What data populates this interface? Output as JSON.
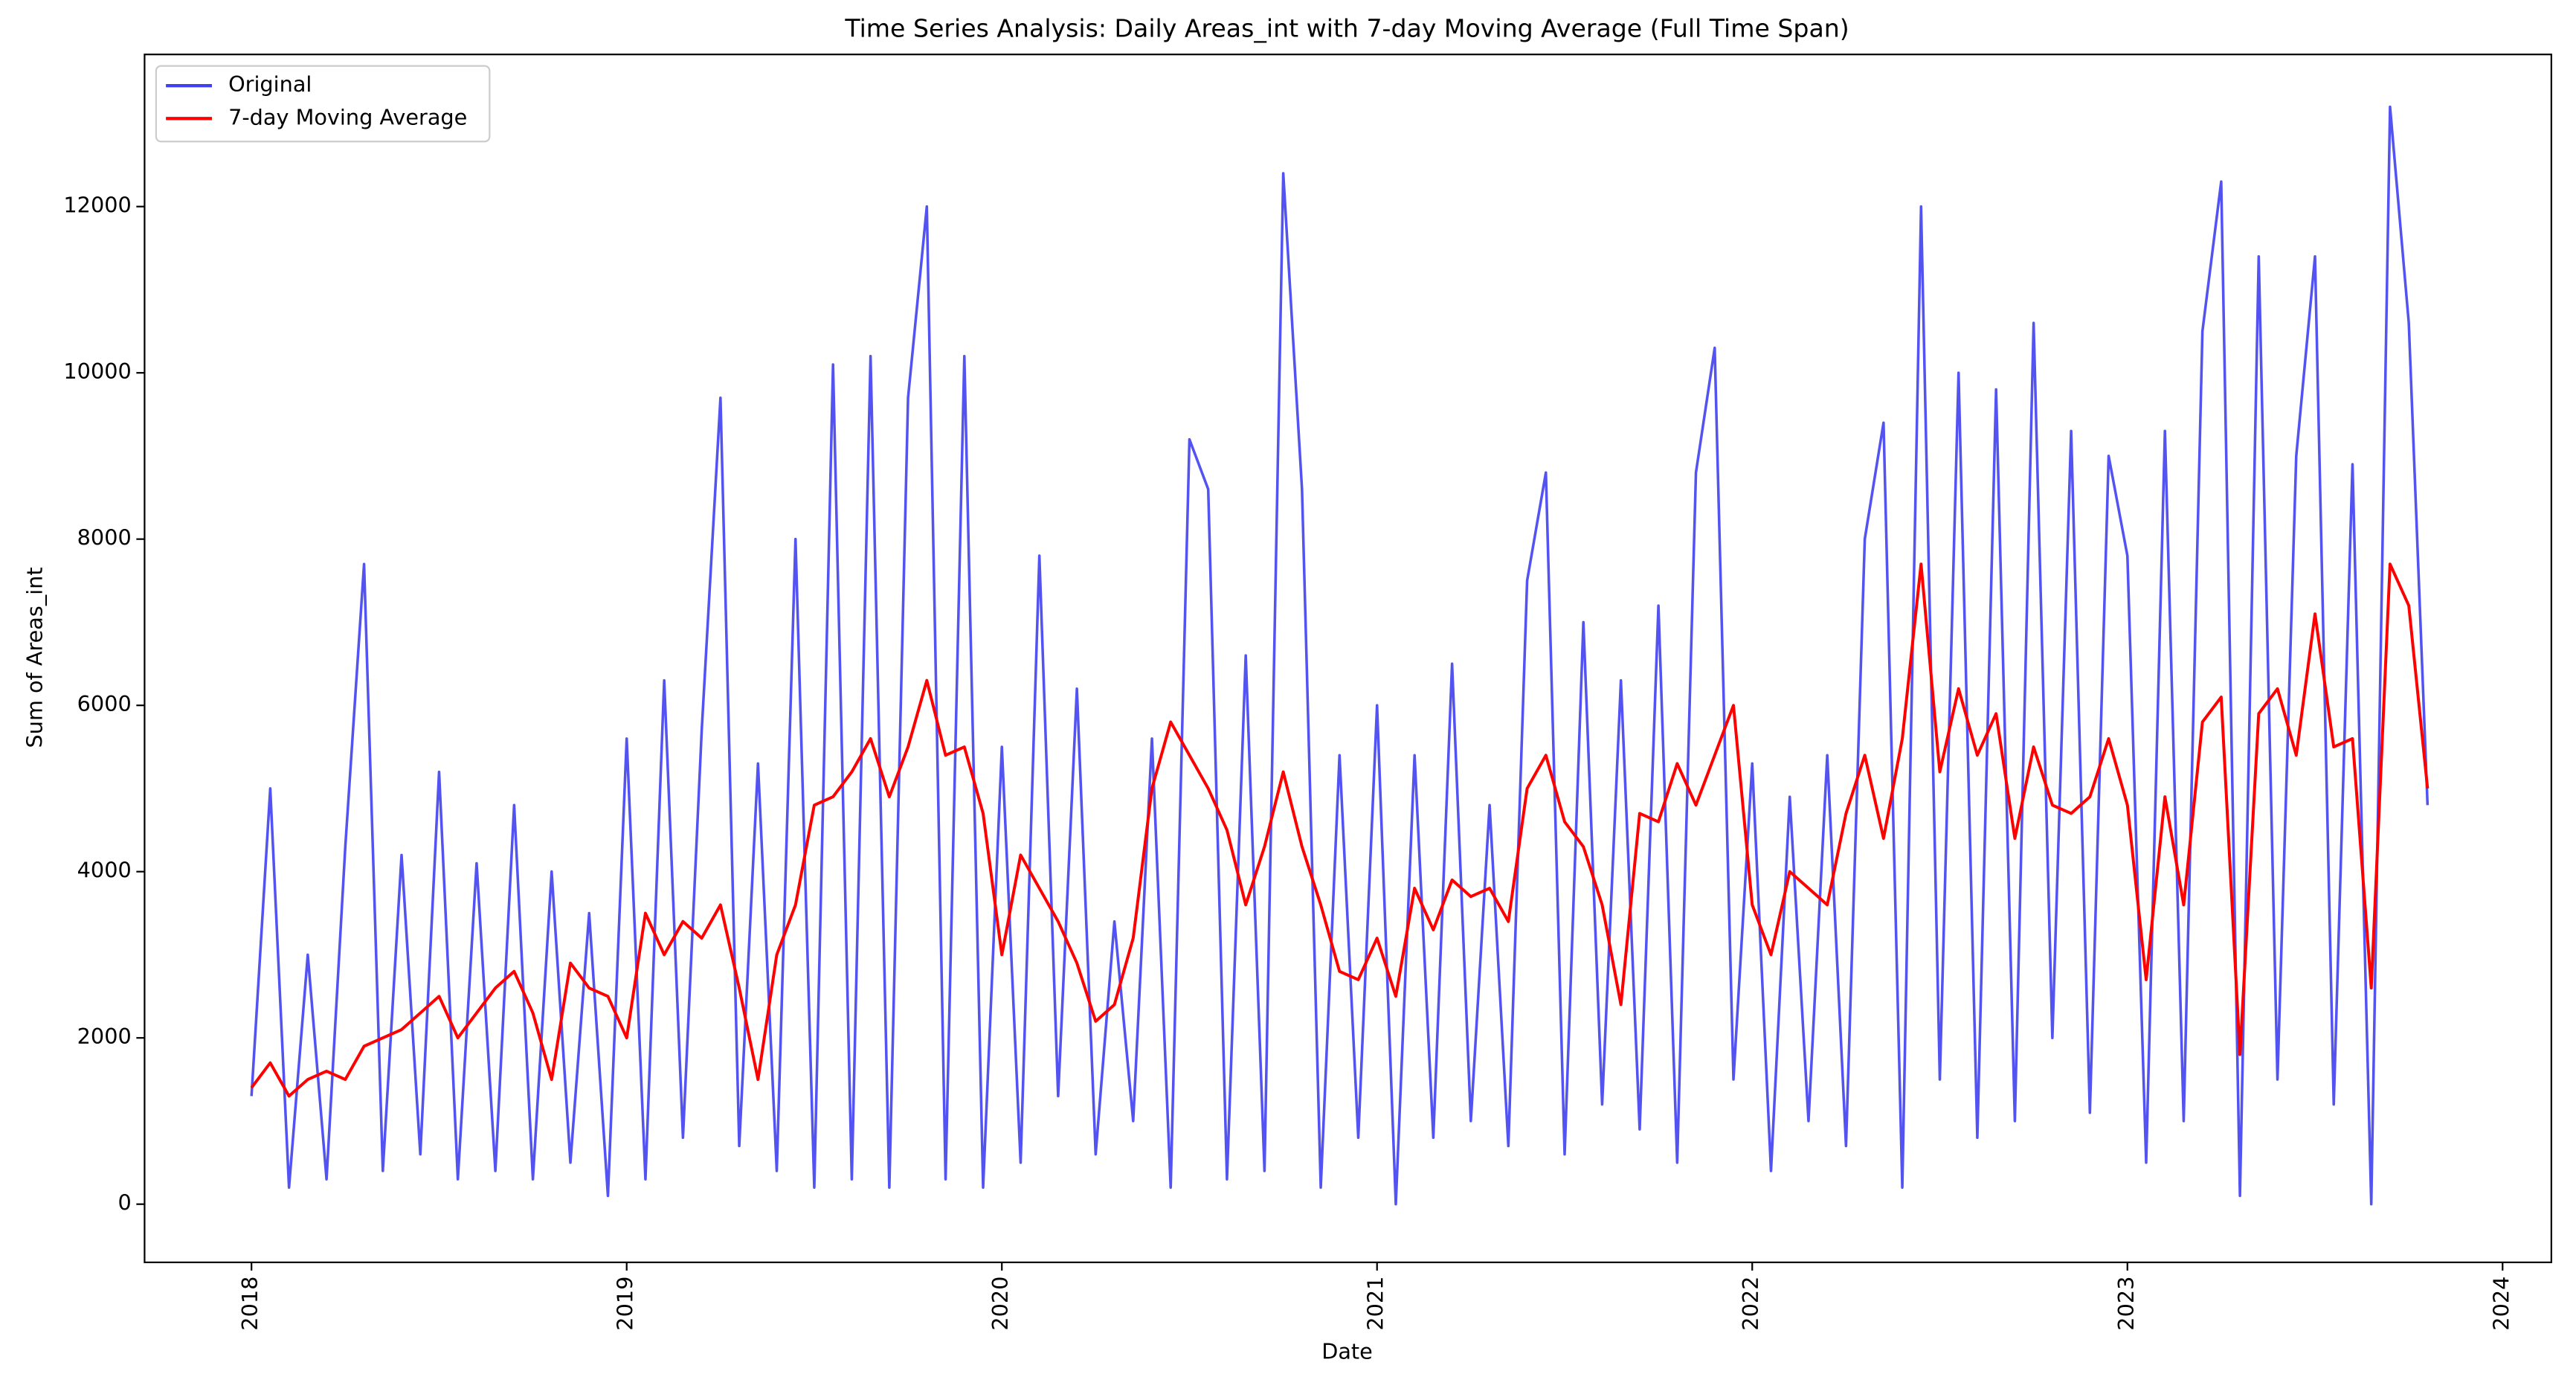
{
  "chart_data": {
    "type": "line",
    "title": "Time Series Analysis: Daily Areas_int with 7-day Moving Average (Full Time Span)",
    "xlabel": "Date",
    "ylabel": "Sum of Areas_int",
    "x": [
      2018.0,
      2018.05,
      2018.1,
      2018.15,
      2018.2,
      2018.25,
      2018.3,
      2018.35,
      2018.4,
      2018.45,
      2018.5,
      2018.55,
      2018.6,
      2018.65,
      2018.7,
      2018.75,
      2018.8,
      2018.85,
      2018.9,
      2018.95,
      2019.0,
      2019.05,
      2019.1,
      2019.15,
      2019.2,
      2019.25,
      2019.3,
      2019.35,
      2019.4,
      2019.45,
      2019.5,
      2019.55,
      2019.6,
      2019.65,
      2019.7,
      2019.75,
      2019.8,
      2019.85,
      2019.9,
      2019.95,
      2020.0,
      2020.05,
      2020.1,
      2020.15,
      2020.2,
      2020.25,
      2020.3,
      2020.35,
      2020.4,
      2020.45,
      2020.5,
      2020.55,
      2020.6,
      2020.65,
      2020.7,
      2020.75,
      2020.8,
      2020.85,
      2020.9,
      2020.95,
      2021.0,
      2021.05,
      2021.1,
      2021.15,
      2021.2,
      2021.25,
      2021.3,
      2021.35,
      2021.4,
      2021.45,
      2021.5,
      2021.55,
      2021.6,
      2021.65,
      2021.7,
      2021.75,
      2021.8,
      2021.85,
      2021.9,
      2021.95,
      2022.0,
      2022.05,
      2022.1,
      2022.15,
      2022.2,
      2022.25,
      2022.3,
      2022.35,
      2022.4,
      2022.45,
      2022.5,
      2022.55,
      2022.6,
      2022.65,
      2022.7,
      2022.75,
      2022.8,
      2022.85,
      2022.9,
      2022.95,
      2023.0,
      2023.05,
      2023.1,
      2023.15,
      2023.2,
      2023.25,
      2023.3,
      2023.35,
      2023.4,
      2023.45,
      2023.5,
      2023.55,
      2023.6,
      2023.65,
      2023.7,
      2023.75,
      2023.8
    ],
    "series": [
      {
        "name": "Original",
        "color": "#4040f0",
        "values": [
          1300,
          5000,
          200,
          3000,
          300,
          4300,
          7700,
          400,
          4200,
          600,
          5200,
          300,
          4100,
          400,
          4800,
          300,
          4000,
          500,
          3500,
          100,
          5600,
          300,
          6300,
          800,
          5700,
          9700,
          700,
          5300,
          400,
          8000,
          200,
          10100,
          300,
          10200,
          200,
          9700,
          12000,
          300,
          10200,
          200,
          5500,
          500,
          7800,
          1300,
          6200,
          600,
          3400,
          1000,
          5600,
          200,
          9200,
          8600,
          300,
          6600,
          400,
          12400,
          8600,
          200,
          5400,
          800,
          6000,
          0,
          5400,
          800,
          6500,
          1000,
          4800,
          700,
          7500,
          8800,
          600,
          7000,
          1200,
          6300,
          900,
          7200,
          500,
          8800,
          10300,
          1500,
          5300,
          400,
          4900,
          1000,
          5400,
          700,
          8000,
          9400,
          200,
          12000,
          1500,
          10000,
          800,
          9800,
          1000,
          10600,
          2000,
          9300,
          1100,
          9000,
          7800,
          500,
          9300,
          1000,
          10500,
          12300,
          100,
          11400,
          1500,
          9000,
          11400,
          1200,
          8900,
          0,
          13200,
          10600,
          4800
        ]
      },
      {
        "name": "7-day Moving Average",
        "color": "#ff0000",
        "values": [
          1400,
          1700,
          1300,
          1500,
          1600,
          1500,
          1900,
          2000,
          2100,
          2300,
          2500,
          2000,
          2300,
          2600,
          2800,
          2300,
          1500,
          2900,
          2600,
          2500,
          2000,
          3500,
          3000,
          3400,
          3200,
          3600,
          2600,
          1500,
          3000,
          3600,
          4800,
          4900,
          5200,
          5600,
          4900,
          5500,
          6300,
          5400,
          5500,
          4700,
          3000,
          4200,
          3800,
          3400,
          2900,
          2200,
          2400,
          3200,
          5000,
          5800,
          5400,
          5000,
          4500,
          3600,
          4300,
          5200,
          4300,
          3600,
          2800,
          2700,
          3200,
          2500,
          3800,
          3300,
          3900,
          3700,
          3800,
          3400,
          5000,
          5400,
          4600,
          4300,
          3600,
          2400,
          4700,
          4600,
          5300,
          4800,
          5400,
          6000,
          3600,
          3000,
          4000,
          3800,
          3600,
          4700,
          5400,
          4400,
          5600,
          7700,
          5200,
          6200,
          5400,
          5900,
          4400,
          5500,
          4800,
          4700,
          4900,
          5600,
          4800,
          2700,
          4900,
          3600,
          5800,
          6100,
          1800,
          5900,
          6200,
          5400,
          7100,
          5500,
          5600,
          2600,
          7700,
          7200,
          5000
        ]
      }
    ],
    "xlim": [
      2017.715,
      2024.13
    ],
    "xticks": [
      2018,
      2019,
      2020,
      2021,
      2022,
      2023,
      2024
    ],
    "ylim": [
      -700,
      13830
    ],
    "yticks": [
      0,
      2000,
      4000,
      6000,
      8000,
      10000,
      12000
    ],
    "legend": "upper left"
  }
}
